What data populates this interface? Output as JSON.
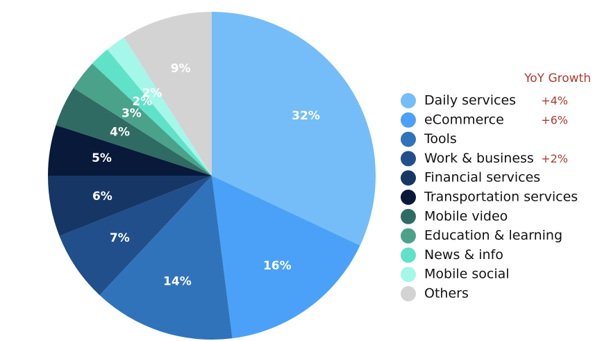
{
  "chart_data": {
    "type": "pie",
    "growth_header": "YoY Growth",
    "label_suffix": "%",
    "growth_color": "#b03a2e",
    "slices": [
      {
        "name": "Daily services",
        "value": 32,
        "color": "#74bdf8",
        "label_color": "#ffffff",
        "growth": "+4%"
      },
      {
        "name": "eCommerce",
        "value": 16,
        "color": "#4aa1f7",
        "label_color": "#ffffff",
        "growth": "+6%"
      },
      {
        "name": "Tools",
        "value": 14,
        "color": "#3173bb",
        "label_color": "#ffffff",
        "growth": ""
      },
      {
        "name": "Work & business",
        "value": 7,
        "color": "#214f8c",
        "label_color": "#ffffff",
        "growth": "+2%"
      },
      {
        "name": "Financial services",
        "value": 6,
        "color": "#163766",
        "label_color": "#ffffff",
        "growth": ""
      },
      {
        "name": "Transportation services",
        "value": 5,
        "color": "#08193a",
        "label_color": "#ffffff",
        "growth": ""
      },
      {
        "name": "Mobile video",
        "value": 4,
        "color": "#2f6b63",
        "label_color": "#ffffff",
        "growth": ""
      },
      {
        "name": "Education & learning",
        "value": 3,
        "color": "#4ba28b",
        "label_color": "#ffffff",
        "growth": ""
      },
      {
        "name": "News & info",
        "value": 2,
        "color": "#5fe2c8",
        "label_color": "#ffffff",
        "growth": ""
      },
      {
        "name": "Mobile social",
        "value": 2,
        "color": "#a5f7ea",
        "label_color": "#ffffff",
        "growth": ""
      },
      {
        "name": "Others",
        "value": 9,
        "color": "#d3d3d3",
        "label_color": "#ffffff",
        "growth": ""
      }
    ],
    "legend_placement": "right"
  }
}
